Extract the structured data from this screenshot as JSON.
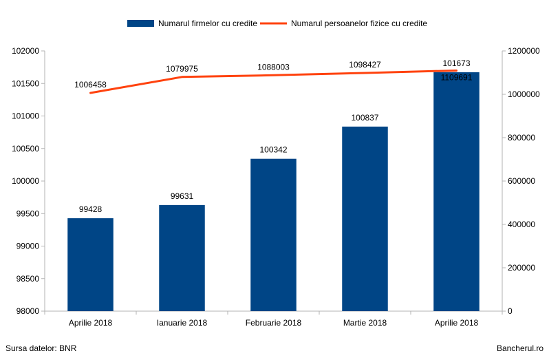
{
  "chart_data": {
    "type": "bar",
    "categories": [
      "Aprilie 2018",
      "Ianuarie 2018",
      "Februarie 2018",
      "Martie 2018",
      "Aprilie 2018"
    ],
    "series": [
      {
        "name": "Numarul firmelor cu credite",
        "type": "bar",
        "axis": "left",
        "values": [
          99428,
          99631,
          100342,
          100837,
          101673
        ],
        "color": "#004586"
      },
      {
        "name": "Numarul persoanelor fizice cu credite",
        "type": "line",
        "axis": "right",
        "values": [
          1006458,
          1079975,
          1088003,
          1098427,
          1109691
        ],
        "color": "#ff420e"
      }
    ],
    "y_left": {
      "min": 98000,
      "max": 102000,
      "step": 500,
      "ticks": [
        "98000",
        "98500",
        "99000",
        "99500",
        "100000",
        "100500",
        "101000",
        "101500",
        "102000"
      ]
    },
    "y_right": {
      "min": 0,
      "max": 1200000,
      "step": 200000,
      "ticks": [
        "0",
        "200000",
        "400000",
        "600000",
        "800000",
        "1000000",
        "1200000"
      ]
    },
    "legend_position": "top-center",
    "grid": false
  },
  "footer": {
    "source": "Sursa datelor: BNR",
    "brand": "Bancherul.ro"
  }
}
